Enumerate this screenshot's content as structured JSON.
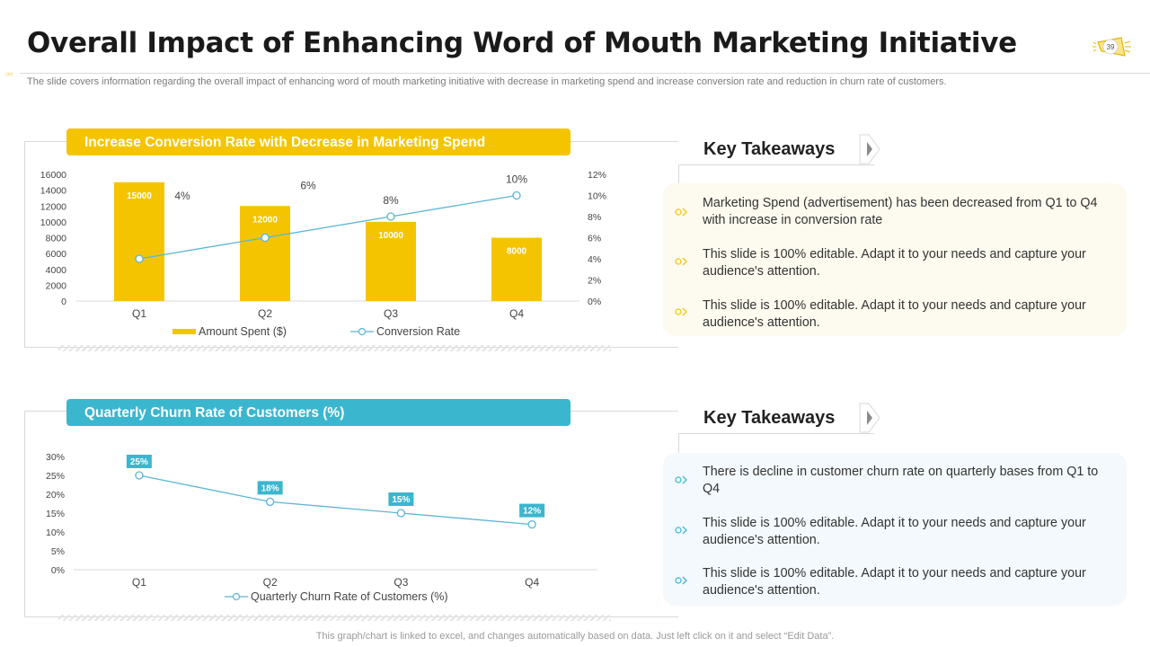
{
  "slide": {
    "title": "Overall Impact of Enhancing Word of Mouth Marketing Initiative",
    "subtitle": "The slide covers information regarding the overall impact of enhancing word of mouth marketing initiative with decrease in marketing spend and increase conversion rate and reduction in churn rate of customers.",
    "page_number": "39",
    "footer": "This graph/chart is linked to excel, and changes automatically based on data. Just left click on it and select “Edit Data”.",
    "colors": {
      "accent_yellow": "#f5c400",
      "accent_blue": "#3bb6cf",
      "line_blue": "#5bb5d5"
    }
  },
  "chart_data": [
    {
      "type": "bar",
      "title": "Increase Conversion Rate with Decrease in Marketing Spend",
      "categories": [
        "Q1",
        "Q2",
        "Q3",
        "Q4"
      ],
      "series": [
        {
          "name": "Amount Spent ($)",
          "type": "bar",
          "axis": "left",
          "values": [
            15000,
            12000,
            10000,
            8000
          ],
          "labels": [
            "15000",
            "12000",
            "10000",
            "8000"
          ]
        },
        {
          "name": "Conversion Rate",
          "type": "line",
          "axis": "right",
          "values": [
            4,
            6,
            8,
            10
          ],
          "labels": [
            "4%",
            "6%",
            "8%",
            "10%"
          ]
        }
      ],
      "y_left": {
        "min": 0,
        "max": 16000,
        "ticks": [
          "0",
          "2000",
          "4000",
          "6000",
          "8000",
          "10000",
          "12000",
          "14000",
          "16000"
        ]
      },
      "y_right": {
        "min": 0,
        "max": 12,
        "ticks": [
          "0%",
          "2%",
          "4%",
          "6%",
          "8%",
          "10%",
          "12%"
        ]
      },
      "legend": "bottom"
    },
    {
      "type": "line",
      "title": "Quarterly Churn Rate of Customers (%)",
      "categories": [
        "Q1",
        "Q2",
        "Q3",
        "Q4"
      ],
      "series": [
        {
          "name": "Quarterly Churn Rate of Customers (%)",
          "values": [
            25,
            18,
            15,
            12
          ],
          "labels": [
            "25%",
            "18%",
            "15%",
            "12%"
          ]
        }
      ],
      "y": {
        "min": 0,
        "max": 30,
        "ticks": [
          "0%",
          "5%",
          "10%",
          "15%",
          "20%",
          "25%",
          "30%"
        ]
      },
      "legend": "bottom"
    }
  ],
  "takeaways": [
    {
      "title": "Key Takeaways",
      "items": [
        "Marketing Spend (advertisement) has been decreased from Q1 to Q4 with increase in conversion rate",
        "This slide is 100% editable. Adapt it to your needs and capture your audience's attention.",
        "This slide is 100% editable. Adapt it to your needs and capture your audience's attention."
      ]
    },
    {
      "title": "Key Takeaways",
      "items": [
        "There is decline in customer churn rate on quarterly bases from Q1 to Q4",
        "This slide is 100% editable. Adapt it to your needs and capture your audience's attention.",
        "This slide is 100% editable. Adapt it to your needs and capture your audience's attention."
      ]
    }
  ]
}
